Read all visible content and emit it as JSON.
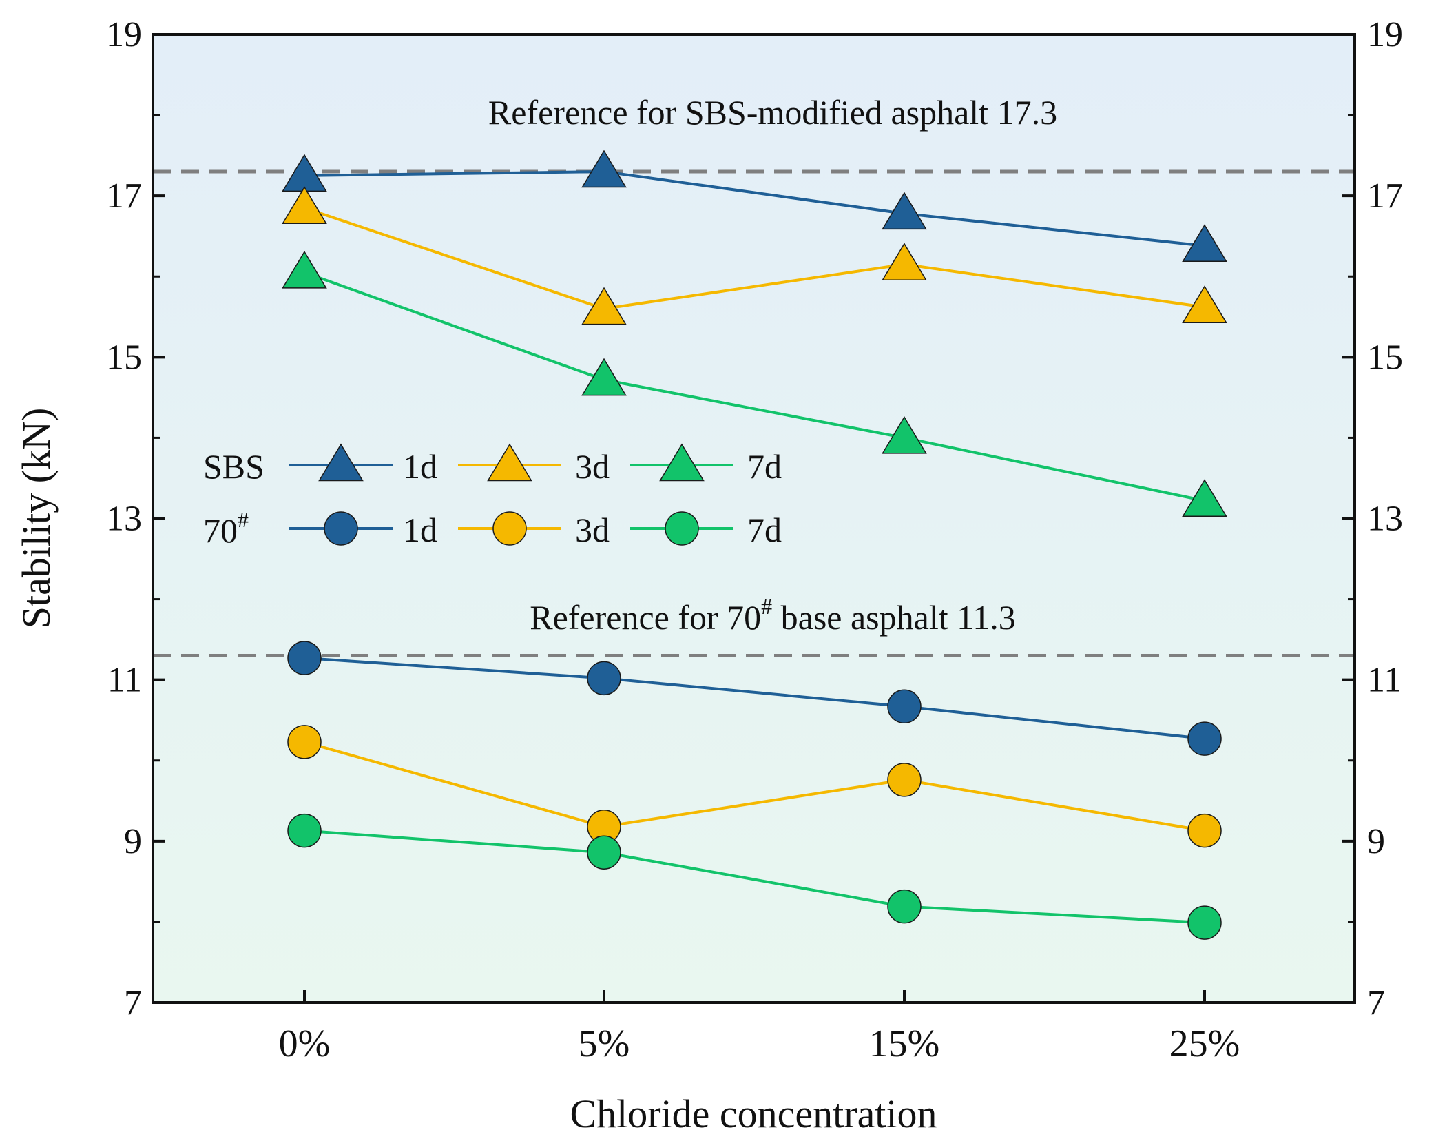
{
  "chart_data": {
    "type": "line",
    "title": "",
    "xlabel": "Chloride concentration",
    "ylabel": "Stability (kN)",
    "categories": [
      "0%",
      "5%",
      "15%",
      "25%"
    ],
    "ylim": [
      7,
      19
    ],
    "yticks": [
      7,
      9,
      11,
      13,
      15,
      17,
      19
    ],
    "right_axis_ticks": [
      "19",
      "17",
      "15",
      "13",
      "11",
      "9",
      "7"
    ],
    "grid": false,
    "legend_position": "center-left",
    "legend": {
      "groups": [
        {
          "group_label": "SBS",
          "marker": "triangle",
          "entries": [
            "1d",
            "3d",
            "7d"
          ]
        },
        {
          "group_label": "70",
          "group_superscript": "#",
          "marker": "circle",
          "entries": [
            "1d",
            "3d",
            "7d"
          ]
        }
      ]
    },
    "series": [
      {
        "name": "SBS 1d",
        "group": "SBS",
        "marker": "triangle",
        "color": "#1f5f96",
        "values": [
          17.25,
          17.3,
          16.78,
          16.38
        ]
      },
      {
        "name": "SBS 3d",
        "group": "SBS",
        "marker": "triangle",
        "color": "#f5b800",
        "values": [
          16.85,
          15.6,
          16.15,
          15.62
        ]
      },
      {
        "name": "SBS 7d",
        "group": "SBS",
        "marker": "triangle",
        "color": "#12c36a",
        "values": [
          16.05,
          14.72,
          14.0,
          13.22
        ]
      },
      {
        "name": "70# 1d",
        "group": "70#",
        "marker": "circle",
        "color": "#1f5f96",
        "values": [
          11.27,
          11.02,
          10.67,
          10.27
        ]
      },
      {
        "name": "70# 3d",
        "group": "70#",
        "marker": "circle",
        "color": "#f5b800",
        "values": [
          10.23,
          9.18,
          9.76,
          9.13
        ]
      },
      {
        "name": "70# 7d",
        "group": "70#",
        "marker": "circle",
        "color": "#12c36a",
        "values": [
          9.13,
          8.86,
          8.19,
          7.99
        ]
      }
    ],
    "reference_lines": [
      {
        "value": 17.3,
        "label": "Reference for SBS-modified asphalt 17.3"
      },
      {
        "value": 11.3,
        "label_prefix": "Reference for  70",
        "label_sup": "#",
        "label_suffix": " base asphalt  11.3"
      }
    ],
    "colors": {
      "background_top": "#e3eef8",
      "background_bottom": "#e9f7f0",
      "reference_line": "#7f7f7f",
      "axis": "#111111"
    }
  }
}
